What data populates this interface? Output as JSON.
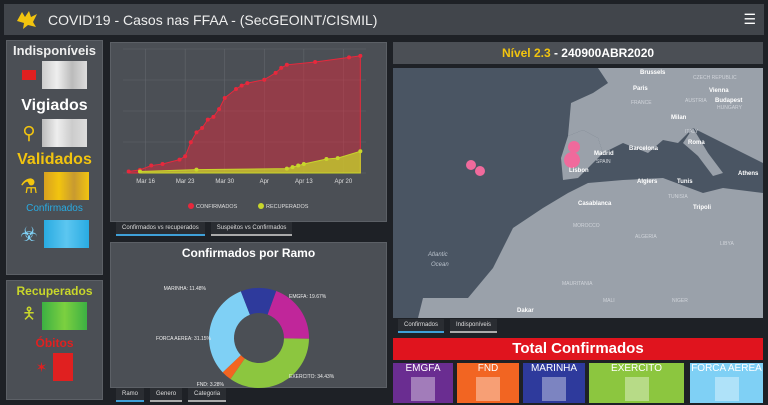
{
  "header": {
    "title": "COVID'19 - Casos nas FFAA - (SecGEOINT/CISMIL)",
    "menu_icon": "hamburger-icon"
  },
  "sidebar": {
    "indisponiveis": "Indisponíveis",
    "vigiados": "Vigiados",
    "validados": "Validados",
    "confirmados": "Confirmados",
    "recuperados": "Recuperados",
    "obitos": "Óbitos",
    "colors": {
      "indisponiveis": "#e02020",
      "vigiados": "#f2c40f",
      "validados": "#f2c40f",
      "confirmados": "#29abe2",
      "recuperados": "#8cc63f",
      "obitos": "#e02020"
    }
  },
  "line_panel": {
    "tabs": [
      "Confirmados vs recuperados",
      "Suspeitos vs Confirmados"
    ]
  },
  "pie_panel": {
    "tabs": [
      "Ramo",
      "Genero",
      "Categoria"
    ]
  },
  "chart_data": [
    {
      "type": "area",
      "xlabel": "",
      "ylabel": "",
      "x_ticks": [
        "Mar 16",
        "Mar 23",
        "Mar 30",
        "Apr",
        "Apr 13",
        "Apr 20"
      ],
      "grid": true,
      "legend_placement": "bottom",
      "series": [
        {
          "name": "CONFIRMADOS",
          "color": "#e8283c",
          "points": [
            [
              "2020-03-13",
              0.05
            ],
            [
              "2020-03-15",
              0.1
            ],
            [
              "2020-03-17",
              0.24
            ],
            [
              "2020-03-19",
              0.29
            ],
            [
              "2020-03-22",
              0.43
            ],
            [
              "2020-03-23",
              0.54
            ],
            [
              "2020-03-24",
              0.99
            ],
            [
              "2020-03-25",
              1.31
            ],
            [
              "2020-03-26",
              1.45
            ],
            [
              "2020-03-27",
              1.72
            ],
            [
              "2020-03-28",
              1.81
            ],
            [
              "2020-03-29",
              2.06
            ],
            [
              "2020-03-30",
              2.42
            ],
            [
              "2020-04-01",
              2.71
            ],
            [
              "2020-04-02",
              2.82
            ],
            [
              "2020-04-03",
              2.9
            ],
            [
              "2020-04-06",
              3.01
            ],
            [
              "2020-04-08",
              3.23
            ],
            [
              "2020-04-09",
              3.39
            ],
            [
              "2020-04-10",
              3.49
            ],
            [
              "2020-04-15",
              3.58
            ],
            [
              "2020-04-21",
              3.73
            ],
            [
              "2020-04-23",
              3.78
            ]
          ]
        },
        {
          "name": "RECUPERADOS",
          "color": "#c8d62b",
          "points": [
            [
              "2020-03-15",
              0.05
            ],
            [
              "2020-03-25",
              0.11
            ],
            [
              "2020-04-10",
              0.14
            ],
            [
              "2020-04-11",
              0.19
            ],
            [
              "2020-04-12",
              0.24
            ],
            [
              "2020-04-13",
              0.29
            ],
            [
              "2020-04-17",
              0.45
            ],
            [
              "2020-04-19",
              0.48
            ],
            [
              "2020-04-23",
              0.7
            ]
          ]
        }
      ]
    },
    {
      "type": "pie",
      "title": "Confirmados por Ramo",
      "donut": true,
      "slices": [
        {
          "label": "EMGFA",
          "value": 19.67,
          "text": "EMGFA: 19.67%",
          "color": "#c0269a"
        },
        {
          "label": "EXERCITO",
          "value": 34.43,
          "text": "EXERCITO: 34.43%",
          "color": "#8cc63f"
        },
        {
          "label": "FND",
          "value": 3.28,
          "text": "FND: 3.28%",
          "color": "#f26522"
        },
        {
          "label": "FORCA AEREA",
          "value": 31.15,
          "text": "FORCA AEREA: 31.15%",
          "color": "#7fd0f5"
        },
        {
          "label": "MARINHA",
          "value": 11.48,
          "text": "MARINHA: 11.48%",
          "color": "#2e3a9c"
        }
      ]
    }
  ],
  "map_panel": {
    "level_label": "Nível 2.3",
    "date": " - 240900ABR2020",
    "places": [
      "Brussels",
      "Paris",
      "FRANCE",
      "CZECH REPUBLIC",
      "Vienna",
      "AUSTRIA",
      "Budapest",
      "HUNGARY",
      "Milan",
      "ITALY",
      "Roma",
      "Madrid",
      "SPAIN",
      "Barcelona",
      "Lisbon",
      "Algiers",
      "Tunis",
      "TUNISIA",
      "Tripoli",
      "Casablanca",
      "MOROCCO",
      "ALGERIA",
      "LIBYA",
      "MAURITANIA",
      "MALI",
      "NIGER",
      "Athens",
      "Atlantic",
      "Ocean",
      "Dakar"
    ],
    "tabs": [
      "Confirmados",
      "Indisponíveis"
    ]
  },
  "totals": {
    "title": "Total Confirmados",
    "cards": [
      {
        "label": "EMGFA",
        "color": "#6a2d91"
      },
      {
        "label": "FND",
        "color": "#f26522"
      },
      {
        "label": "MARINHA",
        "color": "#2e3a9c"
      },
      {
        "label": "EXERCITO",
        "color": "#8cc63f"
      },
      {
        "label": "FORCA AEREA",
        "color": "#7fd0f5"
      }
    ]
  }
}
